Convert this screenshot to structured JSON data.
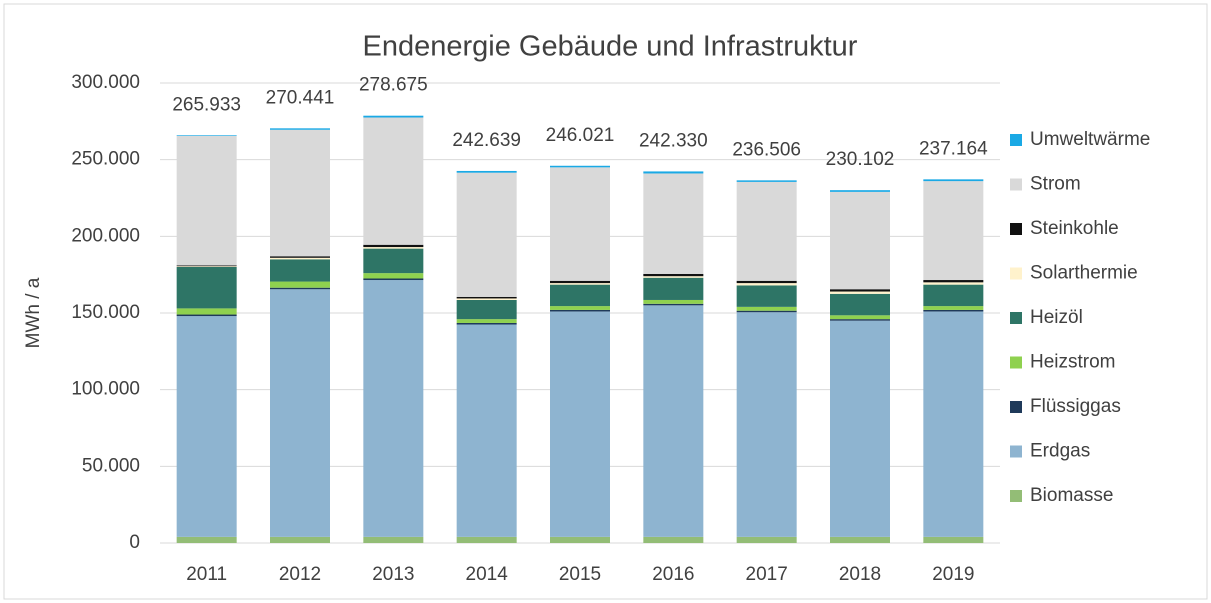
{
  "chart_data": {
    "type": "stacked_bar",
    "title": "Endenergie Gebäude und Infrastruktur",
    "ylabel": "MWh / a",
    "categories": [
      "2011",
      "2012",
      "2013",
      "2014",
      "2015",
      "2016",
      "2017",
      "2018",
      "2019"
    ],
    "series": [
      {
        "name": "Biomasse",
        "color": "#93bd76",
        "values": [
          4000,
          4000,
          4000,
          4000,
          4000,
          4000,
          4000,
          4000,
          4000
        ]
      },
      {
        "name": "Erdgas",
        "color": "#8eb4d0",
        "values": [
          144000,
          161500,
          167500,
          138500,
          147000,
          151000,
          146500,
          141000,
          147000
        ]
      },
      {
        "name": "Flüssiggas",
        "color": "#1f3a5a",
        "values": [
          1000,
          1000,
          1000,
          1000,
          1000,
          1000,
          1000,
          1000,
          1000
        ]
      },
      {
        "name": "Heizstrom",
        "color": "#8fd14f",
        "values": [
          4000,
          4000,
          3500,
          2500,
          2500,
          2500,
          2500,
          2500,
          2500
        ]
      },
      {
        "name": "Heizöl",
        "color": "#2e7566",
        "values": [
          27000,
          14500,
          16000,
          12500,
          14000,
          14500,
          14000,
          14000,
          14000
        ]
      },
      {
        "name": "Solarthermie",
        "color": "#fff2cc",
        "values": [
          500,
          1000,
          1000,
          1000,
          1000,
          1000,
          1500,
          1500,
          1500
        ]
      },
      {
        "name": "Steinkohle",
        "color": "#111111",
        "values": [
          500,
          1000,
          1500,
          1000,
          1500,
          1500,
          1500,
          1500,
          1500
        ]
      },
      {
        "name": "Strom",
        "color": "#d9d9d9",
        "values": [
          84500,
          82500,
          83000,
          81000,
          74000,
          65500,
          64500,
          63500,
          64500
        ]
      },
      {
        "name": "Umweltwärme",
        "color": "#1aa9e5",
        "values": [
          433,
          941,
          1175,
          1139,
          1021,
          1330,
          1006,
          1102,
          1164
        ]
      }
    ],
    "totals": {
      "values": [
        265933,
        270441,
        278675,
        242639,
        246021,
        242330,
        236506,
        230102,
        237164
      ],
      "value_labels": [
        "265.933",
        "270.441",
        "278.675",
        "242.639",
        "246.021",
        "242.330",
        "236.506",
        "230.102",
        "237.164"
      ]
    },
    "ylim": [
      0,
      300000
    ],
    "yticks": [
      0,
      {
        "value": 50000,
        "label": "50.000"
      },
      {
        "value": 100000,
        "label": "100.000"
      },
      {
        "value": 150000,
        "label": "150.000"
      },
      {
        "value": 200000,
        "label": "200.000"
      },
      {
        "value": 250000,
        "label": "250.000"
      },
      {
        "value": 300000,
        "label": "300.000"
      }
    ],
    "grid": true,
    "legend": "right"
  }
}
